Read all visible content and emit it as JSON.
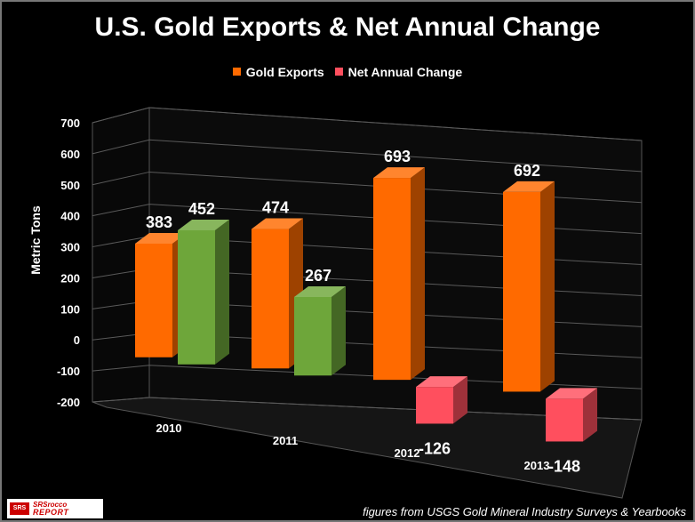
{
  "chart_data": {
    "type": "bar",
    "title": "U.S. Gold Exports & Net Annual Change",
    "categories": [
      "2010",
      "2011",
      "2012",
      "2013"
    ],
    "series": [
      {
        "name": "Gold Exports",
        "values": [
          383,
          474,
          693,
          692
        ],
        "color": "#ff6a00"
      },
      {
        "name": "Net Annual Change",
        "values": [
          452,
          267,
          -126,
          -148
        ],
        "color_positive": "#6ea63a",
        "color_negative": "#ff4f5e"
      }
    ],
    "ylabel": "Metric Tons",
    "xlabel": "",
    "ylim": [
      -200,
      700
    ],
    "yticks": [
      "700",
      "600",
      "500",
      "400",
      "300",
      "200",
      "100",
      "0",
      "-100",
      "-200"
    ],
    "grid": true,
    "legend": "top-center"
  },
  "footer": "figures from USGS Gold Mineral Industry Surveys & Yearbooks",
  "logo": {
    "badge": "SRS",
    "top": "SRSrocco",
    "bottom": "REPORT"
  }
}
